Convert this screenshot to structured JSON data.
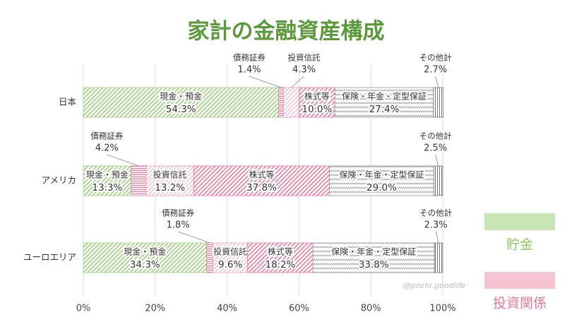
{
  "chart_data": {
    "type": "stacked-bar-horizontal",
    "title": "家計の金融資産構成",
    "categories": [
      "日本",
      "アメリカ",
      "ユーロエリア"
    ],
    "series": [
      {
        "name": "現金・預金",
        "color": "#9fd07e",
        "values": [
          54.3,
          13.3,
          34.3
        ],
        "value_labels": [
          "54.3%",
          "13.3%",
          "34.3%"
        ]
      },
      {
        "name": "債務証券",
        "color": "#e67c9c",
        "values": [
          1.4,
          4.2,
          1.8
        ],
        "value_labels": [
          "1.4%",
          "4.2%",
          "1.8%"
        ]
      },
      {
        "name": "投資信託",
        "color": "#ef9fb6",
        "values": [
          4.3,
          13.2,
          9.6
        ],
        "value_labels": [
          "4.3%",
          "13.2%",
          "9.6%"
        ]
      },
      {
        "name": "株式等",
        "color": "#e67c9c",
        "values": [
          10.0,
          37.8,
          18.2
        ],
        "value_labels": [
          "10.0%",
          "37.8%",
          "18.2%"
        ]
      },
      {
        "name": "保険・年金・定型保証",
        "color": "#9a9a9a",
        "values": [
          27.4,
          29.0,
          33.8
        ],
        "value_labels": [
          "27.4%",
          "29.0%",
          "33.8%"
        ]
      },
      {
        "name": "その他計",
        "color": "#777777",
        "values": [
          2.7,
          2.5,
          2.3
        ],
        "value_labels": [
          "2.7%",
          "2.5%",
          "2.3%"
        ]
      }
    ],
    "xlim": [
      0,
      100
    ],
    "xticks": [
      {
        "value": 0,
        "label": "0%"
      },
      {
        "value": 20,
        "label": "20%"
      },
      {
        "value": 40,
        "label": "40%"
      },
      {
        "value": 60,
        "label": "60%"
      },
      {
        "value": 80,
        "label": "80%"
      },
      {
        "value": 100,
        "label": "100%"
      }
    ],
    "grid": true,
    "legend": [
      {
        "label": "貯金",
        "color": "#c9e7b4",
        "text_color": "#8cc665"
      },
      {
        "label": "投資関係",
        "color": "#f6c3d0",
        "text_color": "#e27a98"
      }
    ],
    "watermark": "@pochi.goodlife"
  }
}
